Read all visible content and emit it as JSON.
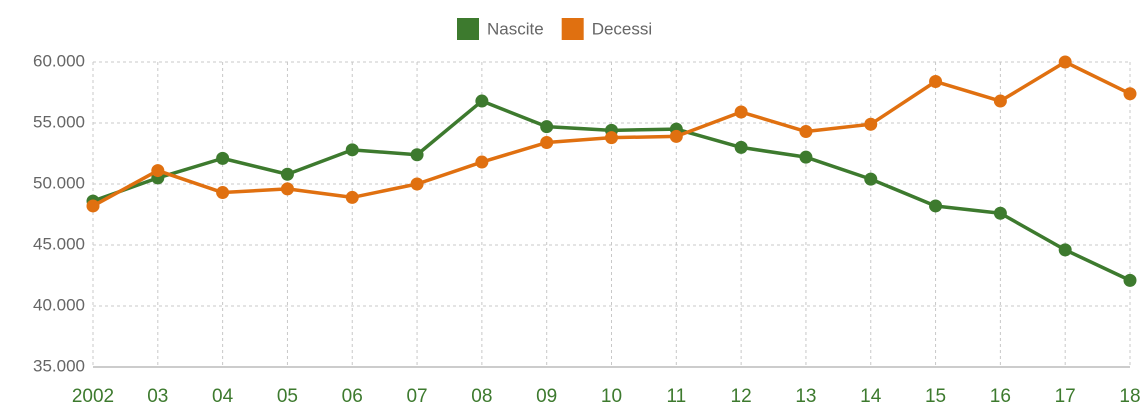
{
  "chart_data": {
    "type": "line",
    "categories": [
      "2002",
      "03",
      "04",
      "05",
      "06",
      "07",
      "08",
      "09",
      "10",
      "11",
      "12",
      "13",
      "14",
      "15",
      "16",
      "17",
      "18"
    ],
    "series": [
      {
        "name": "Nascite",
        "color": "#3d7a2e",
        "values": [
          48600,
          50500,
          52100,
          50800,
          52800,
          52400,
          56800,
          54700,
          54400,
          54500,
          53000,
          52200,
          50400,
          48200,
          47600,
          44600,
          42100
        ]
      },
      {
        "name": "Decessi",
        "color": "#e07010",
        "values": [
          48200,
          51100,
          49300,
          49600,
          48900,
          50000,
          51800,
          53400,
          53800,
          53900,
          55900,
          54300,
          54900,
          58400,
          56800,
          60000,
          57400
        ]
      }
    ],
    "ylim": [
      35000,
      60000
    ],
    "yticks": [
      {
        "value": 35000,
        "label": "35.000"
      },
      {
        "value": 40000,
        "label": "40.000"
      },
      {
        "value": 45000,
        "label": "45.000"
      },
      {
        "value": 50000,
        "label": "50.000"
      },
      {
        "value": 55000,
        "label": "55.000"
      },
      {
        "value": 60000,
        "label": "60.000"
      }
    ],
    "grid": true,
    "legend": "top"
  }
}
